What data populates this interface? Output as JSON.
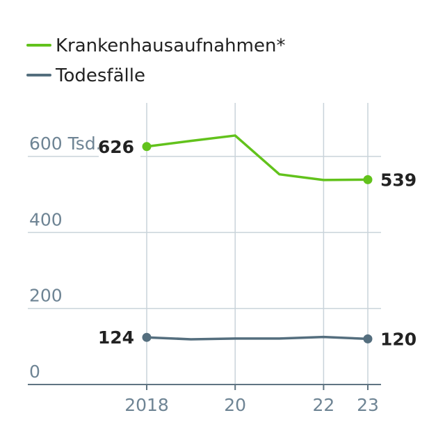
{
  "chart_data": {
    "type": "line",
    "x": [
      2018,
      2019,
      2020,
      2021,
      2022,
      2023
    ],
    "x_tick_labels": [
      {
        "x": 2018,
        "label": "2018"
      },
      {
        "x": 2020,
        "label": "20"
      },
      {
        "x": 2022,
        "label": "22"
      },
      {
        "x": 2023,
        "label": "23"
      }
    ],
    "y_ticks": [
      {
        "value": 0,
        "label": "0"
      },
      {
        "value": 200,
        "label": "200"
      },
      {
        "value": 400,
        "label": "400"
      },
      {
        "value": 600,
        "label": "600 Tsd."
      }
    ],
    "ylim": [
      0,
      740
    ],
    "grid": true,
    "legend_position": "top-left",
    "series": [
      {
        "name": "Krankenhausaufnahmen*",
        "color": "#62c21c",
        "values": [
          626,
          641,
          655,
          553,
          538,
          539
        ],
        "start_label": "626",
        "end_label": "539"
      },
      {
        "name": "Todesfälle",
        "color": "#546e7e",
        "values": [
          124,
          119,
          121,
          121,
          125,
          120
        ],
        "start_label": "124",
        "end_label": "120"
      }
    ]
  }
}
